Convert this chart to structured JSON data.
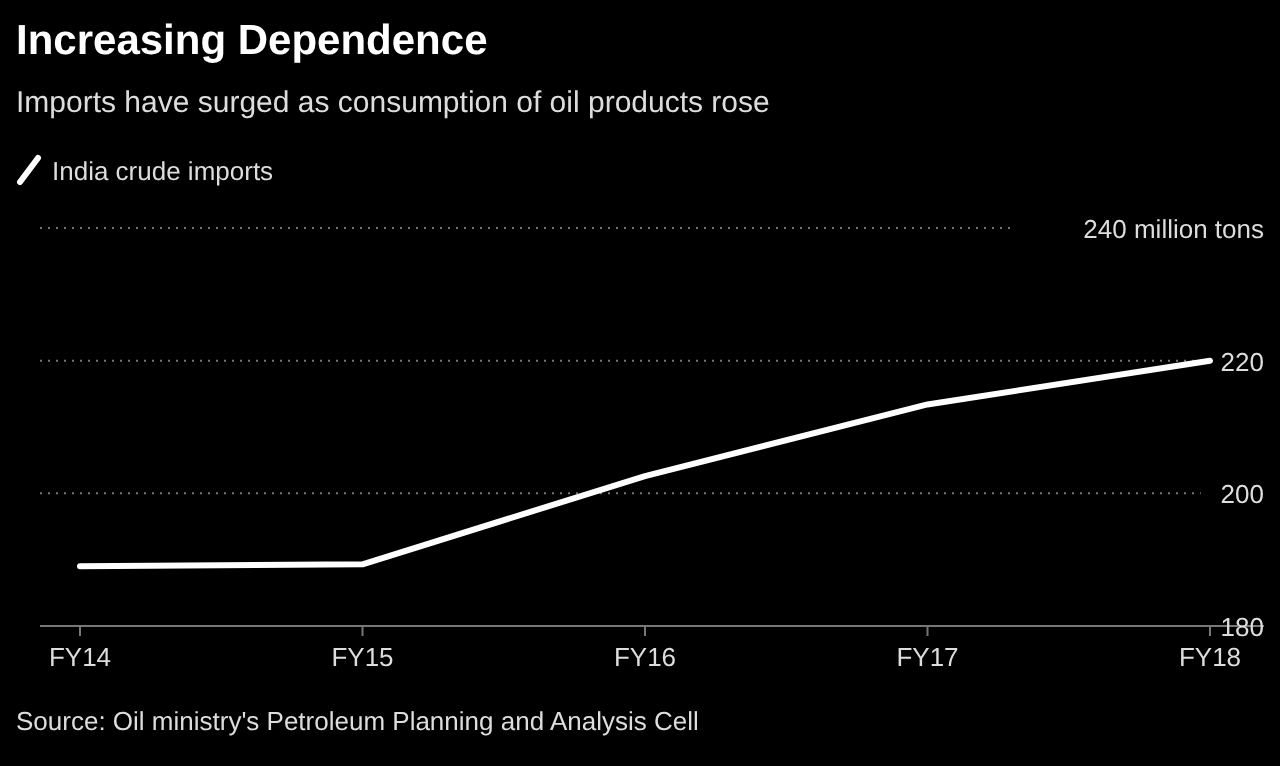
{
  "chart_data": {
    "type": "line",
    "title": "Increasing Dependence",
    "subtitle": "Imports have surged as consumption of oil products rose",
    "categories": [
      "FY14",
      "FY15",
      "FY16",
      "FY17",
      "FY18"
    ],
    "series": [
      {
        "name": "India crude imports",
        "color": "#ffffff",
        "values": [
          189.0,
          189.3,
          202.6,
          213.4,
          220.0
        ]
      }
    ],
    "ylim": [
      180,
      240
    ],
    "yticks": [
      180,
      200,
      220,
      {
        "value": 240,
        "label": "240 million tons"
      }
    ],
    "grid": "y",
    "legend": "top left",
    "marker": "none",
    "line_style": "solid",
    "annotations": [
      "Source: Oil ministry's Petroleum Planning and Analysis Cell"
    ]
  }
}
